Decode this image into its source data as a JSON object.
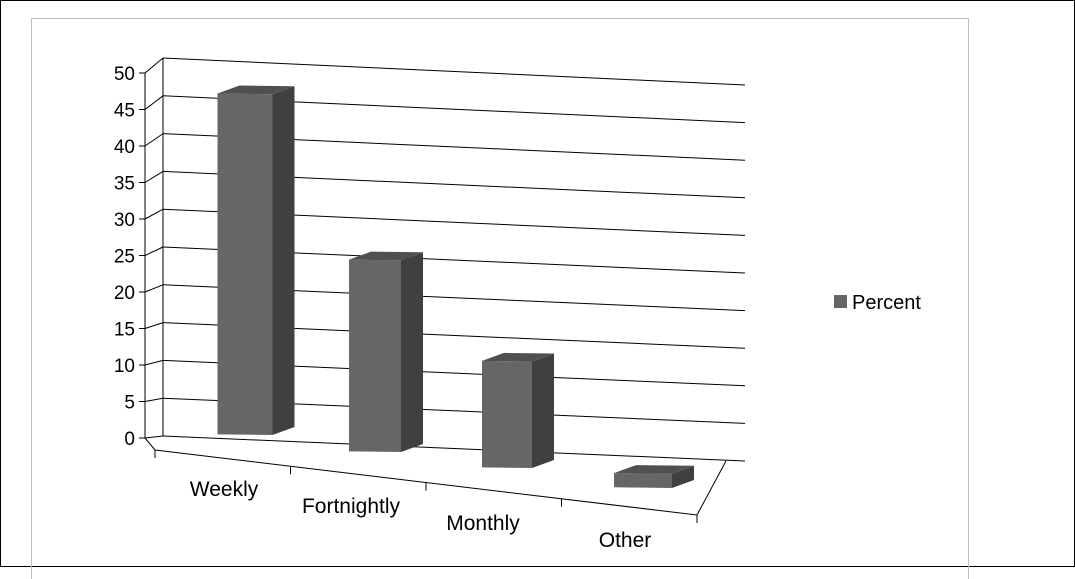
{
  "chart_data": {
    "type": "bar",
    "style": "3d-column",
    "categories": [
      "Weekly",
      "Fortnightly",
      "Monthly",
      "Other"
    ],
    "series": [
      {
        "name": "Percent",
        "values": [
          48,
          27,
          15,
          2
        ],
        "color": "#666666"
      }
    ],
    "yticks": [
      "0",
      "5",
      "10",
      "15",
      "20",
      "25",
      "30",
      "35",
      "40",
      "45",
      "50"
    ],
    "ylim": [
      0,
      50
    ],
    "grid": true,
    "legend": "right",
    "colors": {
      "bar_front": "#666666",
      "bar_side": "#404040",
      "bar_top": "#505050",
      "grid": "#000000"
    }
  }
}
